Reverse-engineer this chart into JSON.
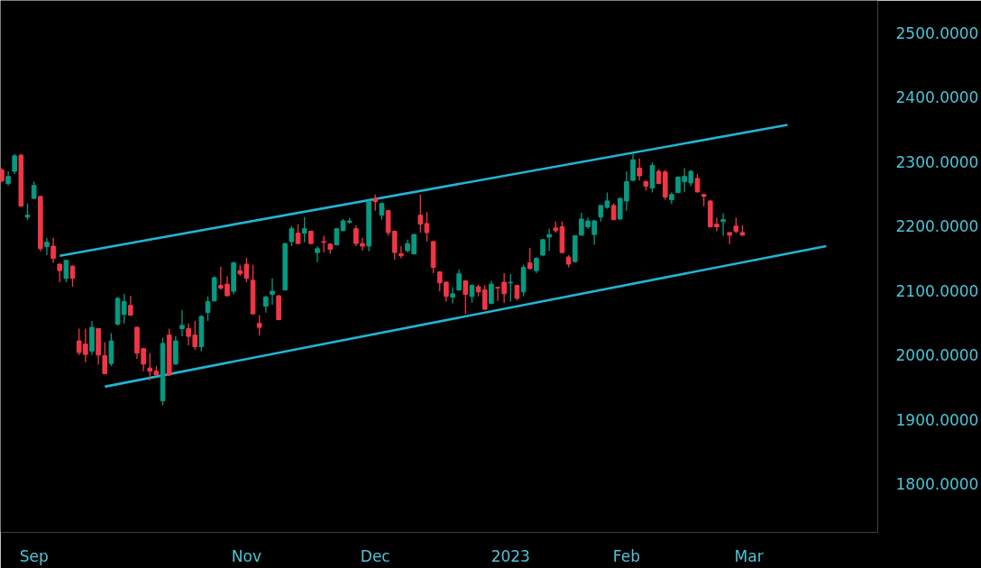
{
  "chart_data": {
    "type": "candlestick",
    "categories": [
      null,
      null,
      null,
      null,
      null,
      "Sep",
      null,
      null,
      null,
      null,
      null,
      null,
      null,
      null,
      null,
      null,
      null,
      null,
      null,
      null,
      null,
      null,
      null,
      null,
      null,
      null,
      null,
      null,
      null,
      null,
      null,
      null,
      null,
      null,
      null,
      null,
      null,
      null,
      "Nov",
      null,
      null,
      null,
      null,
      null,
      null,
      null,
      null,
      null,
      null,
      null,
      null,
      null,
      null,
      null,
      null,
      null,
      null,
      null,
      "Dec",
      null,
      null,
      null,
      null,
      null,
      null,
      null,
      null,
      null,
      null,
      null,
      null,
      null,
      null,
      null,
      null,
      null,
      null,
      null,
      null,
      "2023",
      null,
      null,
      null,
      null,
      null,
      null,
      null,
      null,
      null,
      null,
      null,
      null,
      null,
      null,
      null,
      null,
      null,
      "Feb",
      null,
      null,
      null,
      null,
      null,
      null,
      null,
      null,
      null,
      null,
      null,
      null,
      null,
      null,
      null,
      null,
      null,
      null,
      "Mar",
      null,
      null,
      null,
      null,
      null,
      null,
      null,
      null,
      null,
      null,
      null,
      null,
      null,
      null,
      null,
      null,
      null,
      null,
      null,
      null
    ],
    "ohlc": [
      [
        2287,
        2290,
        2268,
        2270
      ],
      [
        2266,
        2285,
        2263,
        2277
      ],
      [
        2285,
        2312,
        2281,
        2309
      ],
      [
        2310,
        2312,
        2230,
        2231
      ],
      [
        2214,
        2235,
        2210,
        2217
      ],
      [
        2243,
        2269,
        2242,
        2263
      ],
      [
        2246,
        2247,
        2161,
        2165
      ],
      [
        2168,
        2182,
        2155,
        2175
      ],
      [
        2169,
        2182,
        2143,
        2150
      ],
      [
        2141,
        2142,
        2113,
        2131
      ],
      [
        2119,
        2148,
        2113,
        2147
      ],
      [
        2138,
        2139,
        2106,
        2119
      ],
      [
        2022,
        2041,
        2000,
        2004
      ],
      [
        2017,
        2041,
        1989,
        2001
      ],
      [
        2006,
        2053,
        2000,
        2043
      ],
      [
        2041,
        2041,
        1985,
        2000
      ],
      [
        1999,
        2020,
        1970,
        1971
      ],
      [
        1987,
        2034,
        1983,
        2022
      ],
      [
        2048,
        2090,
        2046,
        2088
      ],
      [
        2063,
        2095,
        2049,
        2083
      ],
      [
        2077,
        2092,
        2061,
        2062
      ],
      [
        2043,
        2044,
        1994,
        2003
      ],
      [
        2010,
        2011,
        1975,
        1986
      ],
      [
        1980,
        2003,
        1961,
        1975
      ],
      [
        1975,
        1983,
        1968,
        1969
      ],
      [
        1929,
        2027,
        1922,
        2018
      ],
      [
        2031,
        2041,
        1968,
        1969
      ],
      [
        1986,
        2029,
        1985,
        2022
      ],
      [
        2041,
        2070,
        2029,
        2046
      ],
      [
        2041,
        2049,
        2015,
        2029
      ],
      [
        2031,
        2053,
        2008,
        2013
      ],
      [
        2013,
        2062,
        2006,
        2060
      ],
      [
        2066,
        2091,
        2053,
        2083
      ],
      [
        2084,
        2122,
        2083,
        2120
      ],
      [
        2108,
        2137,
        2101,
        2104
      ],
      [
        2110,
        2122,
        2091,
        2092
      ],
      [
        2099,
        2145,
        2094,
        2143
      ],
      [
        2131,
        2140,
        2123,
        2126
      ],
      [
        2141,
        2151,
        2113,
        2119
      ],
      [
        2116,
        2140,
        2063,
        2064
      ],
      [
        2049,
        2062,
        2031,
        2043
      ],
      [
        2076,
        2092,
        2066,
        2090
      ],
      [
        2094,
        2119,
        2078,
        2099
      ],
      [
        2092,
        2093,
        2054,
        2055
      ],
      [
        2101,
        2174,
        2100,
        2173
      ],
      [
        2176,
        2200,
        2169,
        2196
      ],
      [
        2189,
        2203,
        2172,
        2173
      ],
      [
        2189,
        2214,
        2175,
        2196
      ],
      [
        2192,
        2193,
        2172,
        2173
      ],
      [
        2159,
        2169,
        2144,
        2165
      ],
      [
        2176,
        2185,
        2159,
        2175
      ],
      [
        2172,
        2173,
        2157,
        2164
      ],
      [
        2171,
        2197,
        2170,
        2196
      ],
      [
        2193,
        2211,
        2192,
        2208
      ],
      [
        2206,
        2213,
        2204,
        2208
      ],
      [
        2196,
        2201,
        2169,
        2173
      ],
      [
        2173,
        2182,
        2162,
        2169
      ],
      [
        2169,
        2240,
        2161,
        2238
      ],
      [
        2242,
        2249,
        2224,
        2238
      ],
      [
        2217,
        2237,
        2210,
        2235
      ],
      [
        2224,
        2225,
        2185,
        2190
      ],
      [
        2192,
        2193,
        2148,
        2159
      ],
      [
        2157,
        2169,
        2150,
        2154
      ],
      [
        2162,
        2179,
        2159,
        2173
      ],
      [
        2157,
        2188,
        2156,
        2187
      ],
      [
        2217,
        2249,
        2190,
        2203
      ],
      [
        2204,
        2222,
        2176,
        2190
      ],
      [
        2176,
        2177,
        2127,
        2136
      ],
      [
        2129,
        2130,
        2099,
        2112
      ],
      [
        2113,
        2114,
        2083,
        2091
      ],
      [
        2090,
        2105,
        2080,
        2095
      ],
      [
        2101,
        2133,
        2100,
        2126
      ],
      [
        2115,
        2116,
        2064,
        2094
      ],
      [
        2091,
        2110,
        2081,
        2108
      ],
      [
        2106,
        2109,
        2091,
        2098
      ],
      [
        2101,
        2108,
        2070,
        2071
      ],
      [
        2080,
        2115,
        2079,
        2110
      ],
      [
        2105,
        2106,
        2084,
        2104
      ],
      [
        2113,
        2127,
        2081,
        2095
      ],
      [
        2112,
        2126,
        2083,
        2113
      ],
      [
        2108,
        2109,
        2085,
        2088
      ],
      [
        2098,
        2140,
        2091,
        2136
      ],
      [
        2143,
        2166,
        2133,
        2134
      ],
      [
        2131,
        2152,
        2127,
        2150
      ],
      [
        2155,
        2180,
        2154,
        2179
      ],
      [
        2183,
        2196,
        2162,
        2187
      ],
      [
        2197,
        2207,
        2190,
        2193
      ],
      [
        2199,
        2207,
        2158,
        2159
      ],
      [
        2152,
        2155,
        2136,
        2141
      ],
      [
        2145,
        2186,
        2143,
        2185
      ],
      [
        2186,
        2221,
        2185,
        2211
      ],
      [
        2199,
        2213,
        2196,
        2208
      ],
      [
        2187,
        2210,
        2171,
        2208
      ],
      [
        2214,
        2233,
        2207,
        2232
      ],
      [
        2229,
        2252,
        2227,
        2239
      ],
      [
        2232,
        2235,
        2209,
        2210
      ],
      [
        2211,
        2244,
        2210,
        2243
      ],
      [
        2239,
        2285,
        2224,
        2269
      ],
      [
        2271,
        2312,
        2270,
        2303
      ],
      [
        2290,
        2305,
        2271,
        2278
      ],
      [
        2269,
        2271,
        2255,
        2262
      ],
      [
        2259,
        2299,
        2252,
        2294
      ],
      [
        2285,
        2288,
        2265,
        2266
      ],
      [
        2284,
        2287,
        2241,
        2245
      ],
      [
        2241,
        2252,
        2234,
        2249
      ],
      [
        2252,
        2277,
        2251,
        2276
      ],
      [
        2269,
        2290,
        2253,
        2277
      ],
      [
        2267,
        2287,
        2262,
        2285
      ],
      [
        2274,
        2281,
        2252,
        2253
      ],
      [
        2249,
        2250,
        2231,
        2246
      ],
      [
        2239,
        2240,
        2198,
        2199
      ],
      [
        2203,
        2213,
        2192,
        2199
      ],
      [
        2207,
        2220,
        2185,
        2210
      ],
      [
        2190,
        2191,
        2172,
        2186
      ],
      [
        2200,
        2213,
        2189,
        2192
      ],
      [
        2190,
        2201,
        2185,
        2186
      ],
      null,
      null,
      null,
      null,
      null,
      null,
      null,
      null,
      null,
      null,
      null,
      null,
      null,
      null,
      null,
      null,
      null,
      null,
      null,
      null,
      null
    ],
    "colors": [
      "#f23645",
      "#089981",
      "#089981",
      "#f23645",
      "#089981",
      "#089981",
      "#f23645",
      "#089981",
      "#f23645",
      "#f23645",
      "#089981",
      "#f23645",
      "#f23645",
      "#f23645",
      "#089981",
      "#f23645",
      "#f23645",
      "#089981",
      "#089981",
      "#089981",
      "#f23645",
      "#f23645",
      "#f23645",
      "#f23645",
      "#f23645",
      "#089981",
      "#f23645",
      "#089981",
      "#089981",
      "#f23645",
      "#f23645",
      "#089981",
      "#089981",
      "#089981",
      "#f23645",
      "#f23645",
      "#089981",
      "#f23645",
      "#f23645",
      "#f23645",
      "#f23645",
      "#089981",
      "#089981",
      "#f23645",
      "#089981",
      "#089981",
      "#f23645",
      "#089981",
      "#f23645",
      "#089981",
      "#f23645",
      "#f23645",
      "#089981",
      "#089981",
      "#089981",
      "#f23645",
      "#f23645",
      "#089981",
      "#f23645",
      "#089981",
      "#f23645",
      "#f23645",
      "#f23645",
      "#089981",
      "#089981",
      "#f23645",
      "#f23645",
      "#f23645",
      "#f23645",
      "#f23645",
      "#089981",
      "#089981",
      "#f23645",
      "#089981",
      "#f23645",
      "#f23645",
      "#089981",
      "#f23645",
      "#f23645",
      "#089981",
      "#f23645",
      "#089981",
      "#f23645",
      "#089981",
      "#089981",
      "#089981",
      "#f23645",
      "#f23645",
      "#f23645",
      "#089981",
      "#089981",
      "#089981",
      "#089981",
      "#089981",
      "#089981",
      "#f23645",
      "#089981",
      "#089981",
      "#089981",
      "#f23645",
      "#f23645",
      "#089981",
      "#f23645",
      "#f23645",
      "#089981",
      "#089981",
      "#089981",
      "#089981",
      "#f23645",
      "#f23645",
      "#f23645",
      "#f23645",
      "#089981",
      "#f23645",
      "#f23645",
      "#f23645",
      null,
      null,
      null,
      null,
      null,
      null,
      null,
      null,
      null,
      null,
      null,
      null,
      null,
      null,
      null,
      null,
      null,
      null,
      null,
      null,
      null
    ],
    "series": [
      {
        "type": "line",
        "color": "#21b5d4",
        "values": [
          null,
          null,
          null,
          null,
          null,
          null,
          null,
          null,
          null,
          2154,
          null,
          null,
          null,
          null,
          null,
          null,
          null,
          null,
          null,
          null,
          null,
          null,
          null,
          null,
          null,
          null,
          null,
          null,
          null,
          null,
          null,
          null,
          null,
          null,
          null,
          null,
          null,
          null,
          null,
          null,
          null,
          null,
          null,
          null,
          null,
          null,
          null,
          null,
          null,
          null,
          null,
          null,
          null,
          null,
          null,
          null,
          null,
          null,
          null,
          null,
          null,
          null,
          null,
          null,
          null,
          null,
          null,
          null,
          null,
          null,
          null,
          null,
          null,
          null,
          null,
          null,
          null,
          null,
          null,
          null,
          null,
          null,
          null,
          null,
          null,
          null,
          null,
          null,
          null,
          null,
          null,
          null,
          null,
          null,
          null,
          null,
          null,
          null,
          null,
          null,
          null,
          null,
          null,
          null,
          null,
          null,
          null,
          null,
          null,
          null,
          null,
          null,
          null,
          null,
          null,
          null,
          null,
          null,
          null,
          null,
          null,
          null,
          2357,
          null,
          null,
          null,
          null,
          null,
          null,
          null,
          null,
          null,
          null,
          null,
          null,
          null,
          null
        ]
      },
      {
        "type": "line",
        "color": "#21b5d4",
        "values": [
          null,
          null,
          null,
          null,
          null,
          null,
          null,
          null,
          null,
          null,
          null,
          null,
          null,
          null,
          null,
          null,
          1951,
          null,
          null,
          null,
          null,
          null,
          null,
          null,
          null,
          null,
          null,
          null,
          null,
          null,
          null,
          null,
          null,
          null,
          null,
          null,
          null,
          null,
          null,
          null,
          null,
          null,
          null,
          null,
          null,
          null,
          null,
          null,
          null,
          null,
          null,
          null,
          null,
          null,
          null,
          null,
          null,
          null,
          null,
          null,
          null,
          null,
          null,
          null,
          null,
          null,
          null,
          null,
          null,
          null,
          null,
          null,
          null,
          null,
          null,
          null,
          null,
          null,
          null,
          null,
          null,
          null,
          null,
          null,
          null,
          null,
          null,
          null,
          null,
          null,
          null,
          null,
          null,
          null,
          null,
          null,
          null,
          null,
          null,
          null,
          null,
          null,
          null,
          null,
          null,
          null,
          null,
          null,
          null,
          null,
          null,
          null,
          null,
          null,
          null,
          null,
          null,
          null,
          null,
          null,
          null,
          null,
          null,
          null,
          null,
          null,
          null,
          null,
          2169,
          null,
          null,
          null,
          null,
          null,
          null,
          null,
          null
        ]
      }
    ],
    "ylim": [
      1725,
      2550
    ],
    "yticks": [
      {
        "value": 1800,
        "label": "1800.0000"
      },
      {
        "value": 1900,
        "label": "1900.0000"
      },
      {
        "value": 2000,
        "label": "2000.0000"
      },
      {
        "value": 2100,
        "label": "2100.0000"
      },
      {
        "value": 2200,
        "label": "2200.0000"
      },
      {
        "value": 2300,
        "label": "2300.0000"
      },
      {
        "value": 2400,
        "label": "2400.0000"
      },
      {
        "value": 2500,
        "label": "2500.0000"
      }
    ],
    "grid": false
  }
}
